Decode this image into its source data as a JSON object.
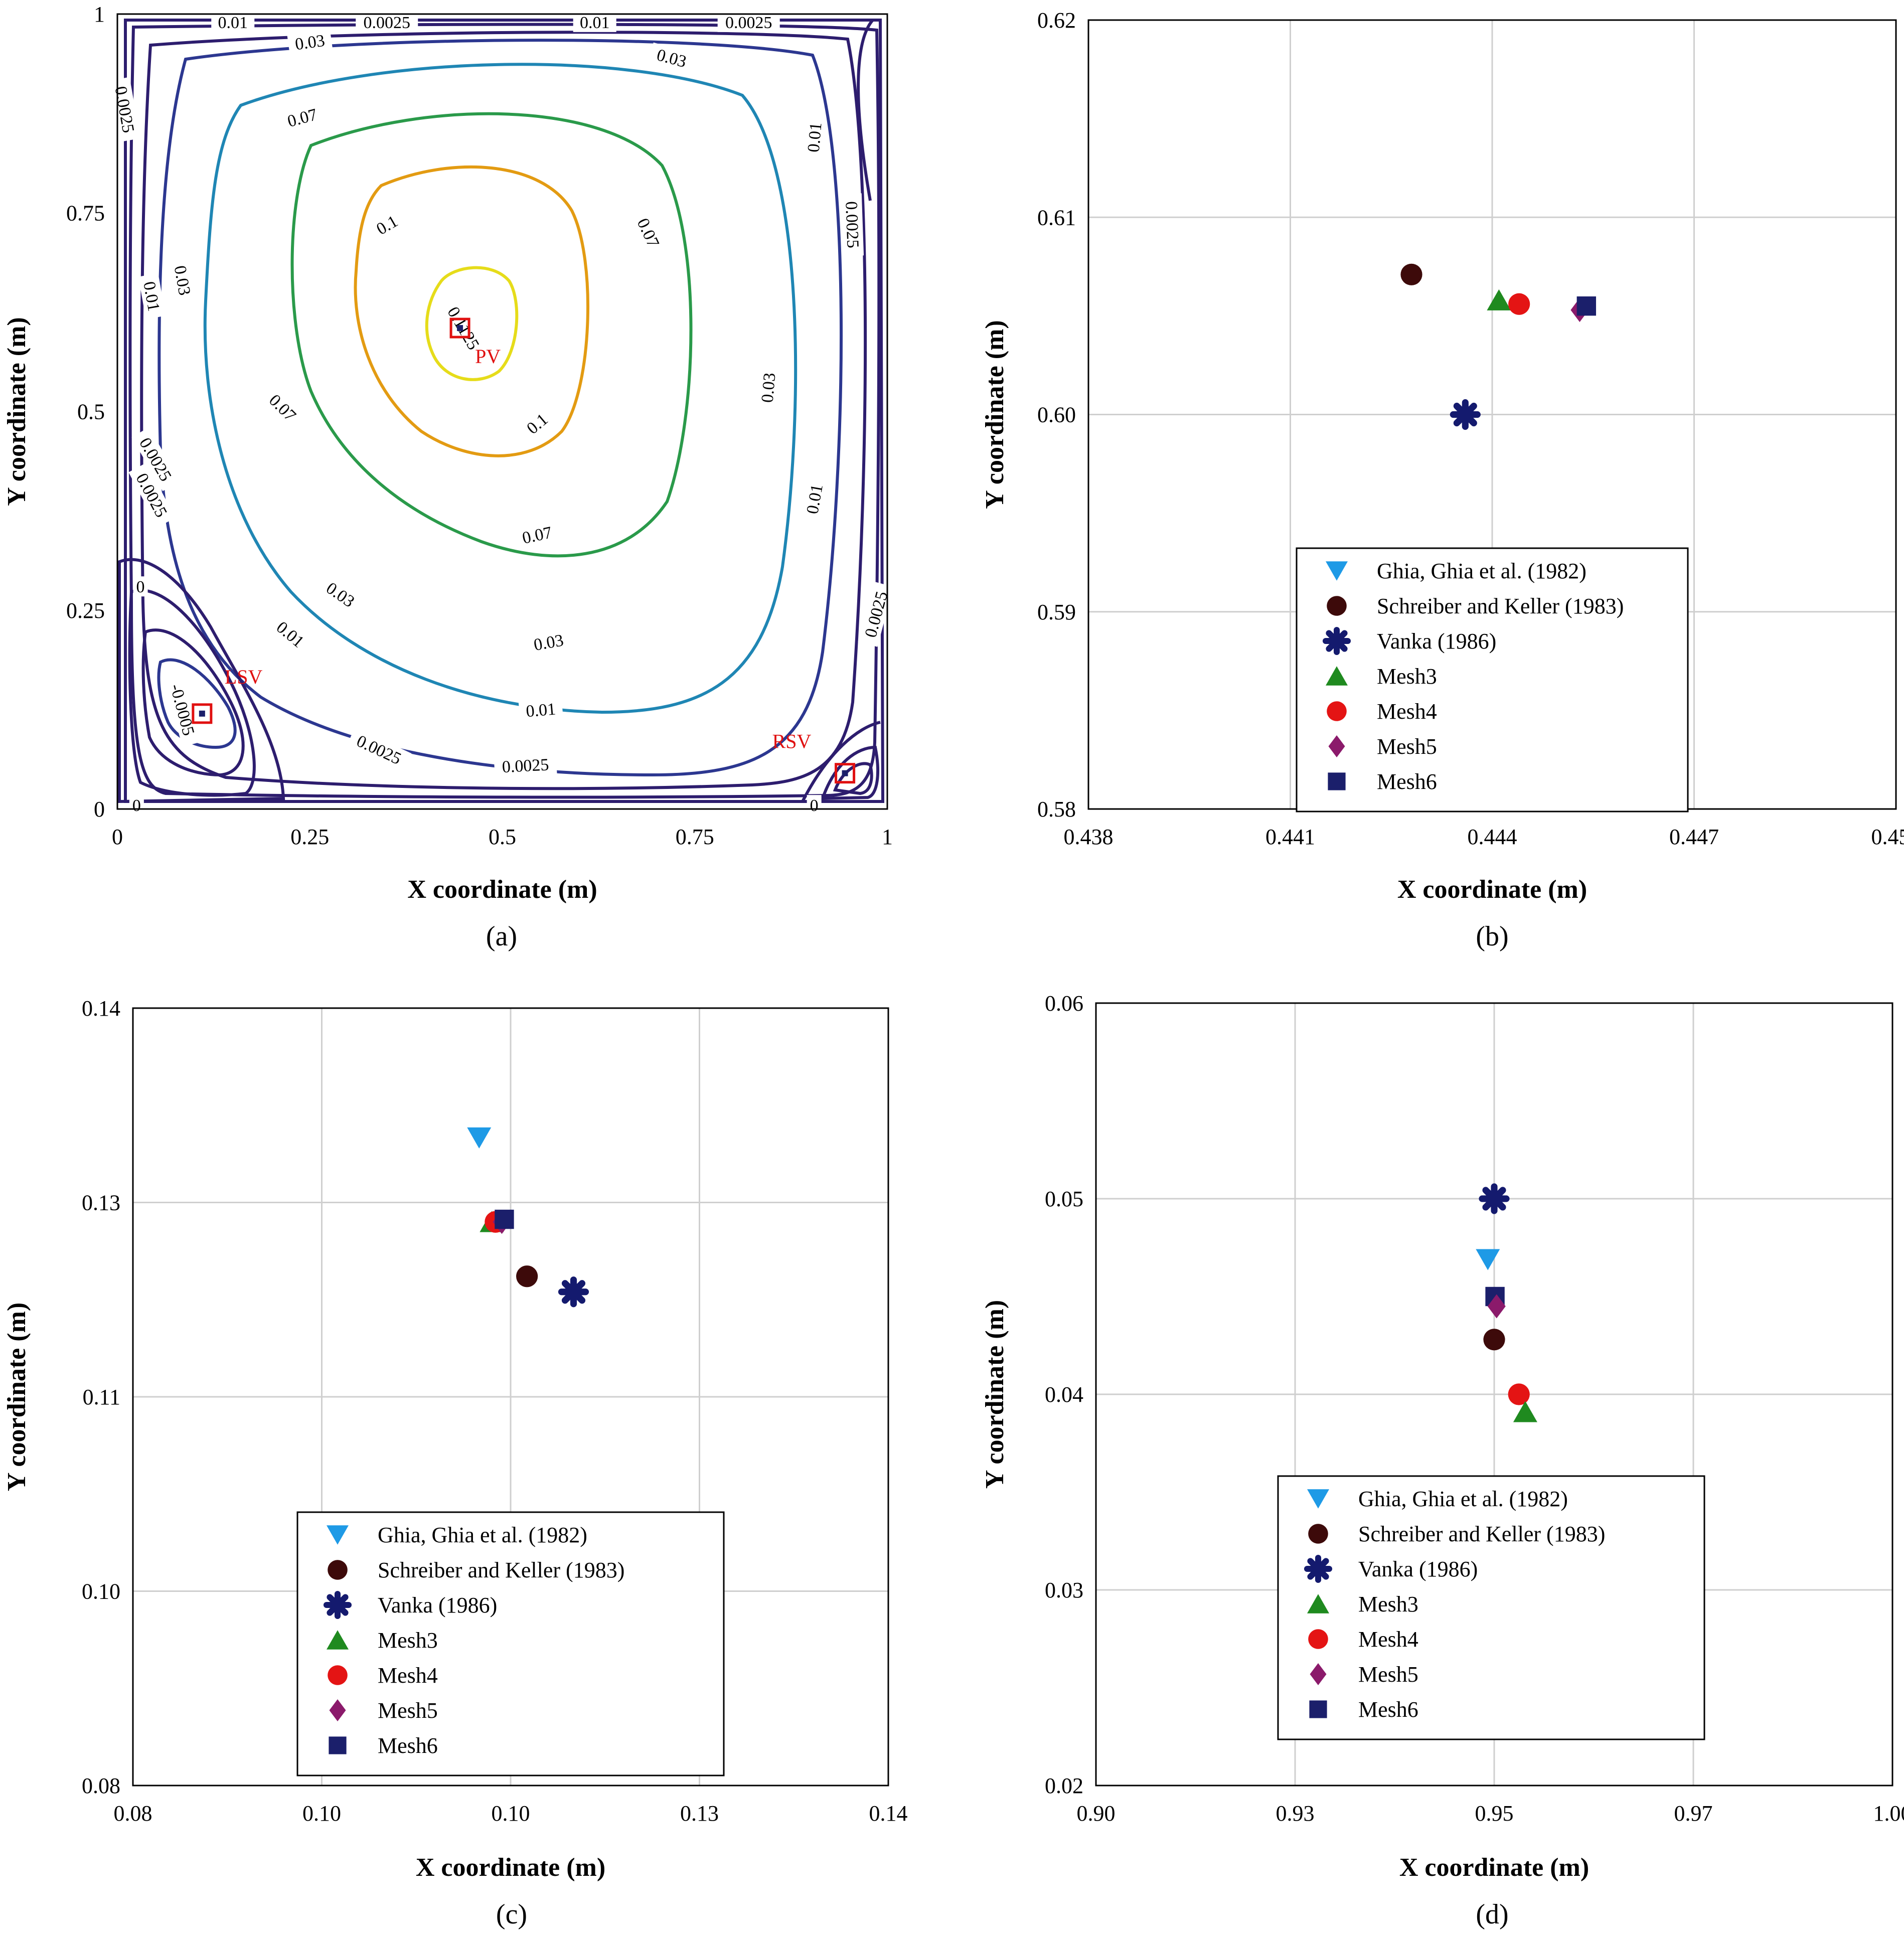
{
  "colors": {
    "ghia": "#1e9ae6",
    "schreiber": "#3d0a0a",
    "vanka": "#141a6e",
    "mesh3": "#1f8a1f",
    "mesh4": "#e41414",
    "mesh5": "#8b1a6b",
    "mesh6": "#1b1f6b",
    "marker_box": "#e01010",
    "grid": "#cfcfcf",
    "contour_palette": [
      "#2d1d6e",
      "#2c3790",
      "#1f86b4",
      "#2a9a4a",
      "#e39b12",
      "#e6dc1a"
    ]
  },
  "legend_entries": [
    {
      "key": "ghia",
      "label": "Ghia, Ghia et al. (1982)",
      "shape": "triangle-down"
    },
    {
      "key": "schreiber",
      "label": "Schreiber and Keller (1983)",
      "shape": "circle"
    },
    {
      "key": "vanka",
      "label": "Vanka (1986)",
      "shape": "asterisk"
    },
    {
      "key": "mesh3",
      "label": "Mesh3",
      "shape": "triangle-up"
    },
    {
      "key": "mesh4",
      "label": "Mesh4",
      "shape": "circle"
    },
    {
      "key": "mesh5",
      "label": "Mesh5",
      "shape": "diamond"
    },
    {
      "key": "mesh6",
      "label": "Mesh6",
      "shape": "square"
    }
  ],
  "chart_data": [
    {
      "id": "a",
      "caption": "(a)",
      "type": "contour",
      "xlabel": "X coordinate (m)",
      "ylabel": "Y coordinate (m)",
      "xlim": [
        0,
        1
      ],
      "ylim": [
        0,
        1
      ],
      "xticks": [
        "0",
        "0.25",
        "0.5",
        "0.75",
        "1"
      ],
      "yticks": [
        "0",
        "0.25",
        "0.5",
        "0.75",
        "1"
      ],
      "grid": false,
      "contour_levels": [
        0,
        0.0025,
        0.01,
        0.03,
        0.07,
        0.1,
        0.1125,
        -0.0005
      ],
      "contour_labels": [
        {
          "text": "0.01",
          "x": 0.15,
          "y": 0.99,
          "rot": 0
        },
        {
          "text": "0.0025",
          "x": 0.35,
          "y": 0.99,
          "rot": 0
        },
        {
          "text": "0.01",
          "x": 0.62,
          "y": 0.99,
          "rot": 0
        },
        {
          "text": "0.0025",
          "x": 0.82,
          "y": 0.99,
          "rot": 0
        },
        {
          "text": "0.03",
          "x": 0.25,
          "y": 0.965,
          "rot": -8
        },
        {
          "text": "0.03",
          "x": 0.72,
          "y": 0.945,
          "rot": 15
        },
        {
          "text": "0.07",
          "x": 0.24,
          "y": 0.87,
          "rot": -15
        },
        {
          "text": "0.0025",
          "x": 0.01,
          "y": 0.88,
          "rot": 80
        },
        {
          "text": "0.01",
          "x": 0.905,
          "y": 0.845,
          "rot": -85
        },
        {
          "text": "0.1",
          "x": 0.35,
          "y": 0.735,
          "rot": -30
        },
        {
          "text": "0.07",
          "x": 0.69,
          "y": 0.725,
          "rot": 65
        },
        {
          "text": "0.0025",
          "x": 0.955,
          "y": 0.735,
          "rot": 88
        },
        {
          "text": "0.03",
          "x": 0.085,
          "y": 0.665,
          "rot": 80
        },
        {
          "text": "0.01",
          "x": 0.045,
          "y": 0.645,
          "rot": 80
        },
        {
          "text": "0.1125",
          "x": 0.45,
          "y": 0.605,
          "rot": 60
        },
        {
          "text": "0.03",
          "x": 0.845,
          "y": 0.53,
          "rot": -85
        },
        {
          "text": "0.07",
          "x": 0.215,
          "y": 0.505,
          "rot": 45
        },
        {
          "text": "0.1",
          "x": 0.545,
          "y": 0.485,
          "rot": -40
        },
        {
          "text": "0.0025",
          "x": 0.05,
          "y": 0.44,
          "rot": 60
        },
        {
          "text": "0.01",
          "x": 0.905,
          "y": 0.39,
          "rot": -80
        },
        {
          "text": "0.0025",
          "x": 0.045,
          "y": 0.395,
          "rot": 62
        },
        {
          "text": "0.07",
          "x": 0.545,
          "y": 0.345,
          "rot": -12
        },
        {
          "text": "0.03",
          "x": 0.29,
          "y": 0.27,
          "rot": 35
        },
        {
          "text": "0.0025",
          "x": 0.985,
          "y": 0.245,
          "rot": -75
        },
        {
          "text": "0.01",
          "x": 0.225,
          "y": 0.22,
          "rot": 40
        },
        {
          "text": "0.03",
          "x": 0.56,
          "y": 0.21,
          "rot": -10
        },
        {
          "text": "0.01",
          "x": 0.55,
          "y": 0.125,
          "rot": -5
        },
        {
          "text": "0.0025",
          "x": 0.34,
          "y": 0.075,
          "rot": 25
        },
        {
          "text": "0.0025",
          "x": 0.53,
          "y": 0.055,
          "rot": -3
        },
        {
          "text": "-0.0005",
          "x": 0.085,
          "y": 0.125,
          "rot": 75
        },
        {
          "text": "0",
          "x": 0.03,
          "y": 0.28,
          "rot": 0
        },
        {
          "text": "0",
          "x": 0.025,
          "y": 0.005,
          "rot": 0
        },
        {
          "text": "0",
          "x": 0.905,
          "y": 0.005,
          "rot": 0
        }
      ],
      "vortices": [
        {
          "label": "PV",
          "x": 0.445,
          "y": 0.605
        },
        {
          "label": "LSV",
          "x": 0.11,
          "y": 0.12
        },
        {
          "label": "RSV",
          "x": 0.945,
          "y": 0.045
        }
      ]
    },
    {
      "id": "b",
      "caption": "(b)",
      "type": "scatter",
      "xlabel": "X coordinate (m)",
      "ylabel": "Y coordinate (m)",
      "xlim": [
        0.438,
        0.45
      ],
      "ylim": [
        0.58,
        0.62
      ],
      "xticks": [
        "0.438",
        "0.441",
        "0.444",
        "0.447",
        "0.450"
      ],
      "yticks": [
        "0.58",
        "0.59",
        "0.60",
        "0.61",
        "0.62"
      ],
      "grid": true,
      "legend_position": "lower-right",
      "series": [
        {
          "key": "schreiber",
          "x": 0.4428,
          "y": 0.6071
        },
        {
          "key": "vanka",
          "x": 0.4436,
          "y": 0.6
        },
        {
          "key": "mesh3",
          "x": 0.4441,
          "y": 0.6058
        },
        {
          "key": "mesh4",
          "x": 0.4444,
          "y": 0.6056
        },
        {
          "key": "mesh5",
          "x": 0.4453,
          "y": 0.6053
        },
        {
          "key": "mesh6",
          "x": 0.4454,
          "y": 0.6055
        }
      ]
    },
    {
      "id": "c",
      "caption": "(c)",
      "type": "scatter",
      "xlabel": "X coordinate (m)",
      "ylabel": "Y coordinate (m)",
      "xlim": [
        0.08,
        0.14
      ],
      "ylim": [
        0.08,
        0.14
      ],
      "xticks": [
        "0.08",
        "0.10",
        "0.10",
        "0.13",
        "0.14"
      ],
      "yticks": [
        "0.08",
        "0.10",
        "0.11",
        "0.13",
        "0.14"
      ],
      "grid": true,
      "legend_position": "lower-center",
      "series": [
        {
          "key": "ghia",
          "x": 0.1075,
          "y": 0.13
        },
        {
          "key": "mesh3",
          "x": 0.1085,
          "y": 0.1235
        },
        {
          "key": "mesh4",
          "x": 0.1088,
          "y": 0.1235
        },
        {
          "key": "mesh5",
          "x": 0.1093,
          "y": 0.1235
        },
        {
          "key": "mesh6",
          "x": 0.1095,
          "y": 0.1237
        },
        {
          "key": "schreiber",
          "x": 0.1113,
          "y": 0.1193
        },
        {
          "key": "vanka",
          "x": 0.115,
          "y": 0.1181
        }
      ]
    },
    {
      "id": "d",
      "caption": "(d)",
      "type": "scatter",
      "xlabel": "X coordinate (m)",
      "ylabel": "Y coordinate (m)",
      "xlim": [
        0.9,
        1.0
      ],
      "ylim": [
        0.02,
        0.06
      ],
      "xticks": [
        "0.90",
        "0.93",
        "0.95",
        "0.97",
        "1.00"
      ],
      "yticks": [
        "0.02",
        "0.03",
        "0.04",
        "0.05",
        "0.06"
      ],
      "grid": true,
      "legend_position": "lower-center",
      "series": [
        {
          "key": "vanka",
          "x": 0.95,
          "y": 0.05
        },
        {
          "key": "ghia",
          "x": 0.9492,
          "y": 0.0469
        },
        {
          "key": "mesh6",
          "x": 0.9501,
          "y": 0.045
        },
        {
          "key": "mesh5",
          "x": 0.9503,
          "y": 0.0445
        },
        {
          "key": "schreiber",
          "x": 0.95,
          "y": 0.0428
        },
        {
          "key": "mesh4",
          "x": 0.9531,
          "y": 0.04
        },
        {
          "key": "mesh3",
          "x": 0.9539,
          "y": 0.0391
        }
      ]
    }
  ]
}
